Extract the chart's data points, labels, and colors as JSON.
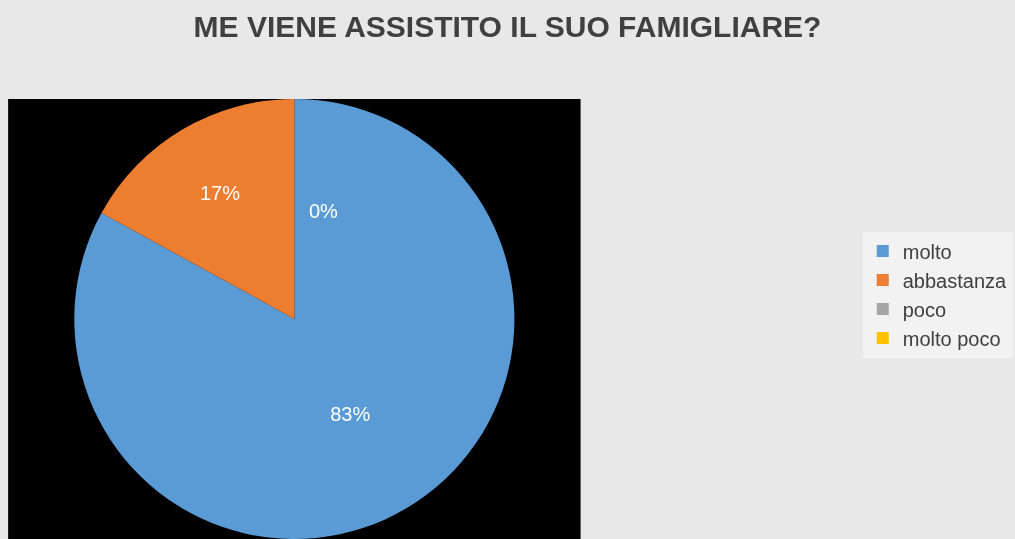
{
  "chart_data": {
    "type": "pie",
    "title": "ME VIENE ASSISTITO IL SUO FAMIGLIARE?",
    "categories": [
      "molto",
      "abbastanza",
      "poco",
      "molto poco"
    ],
    "values": [
      83,
      17,
      0,
      0
    ],
    "colors": [
      "#5b9bd5",
      "#ed7d31",
      "#a5a5a5",
      "#ffc000"
    ],
    "value_labels": [
      "83%",
      "17%",
      "0%",
      null
    ],
    "legend": "right"
  }
}
